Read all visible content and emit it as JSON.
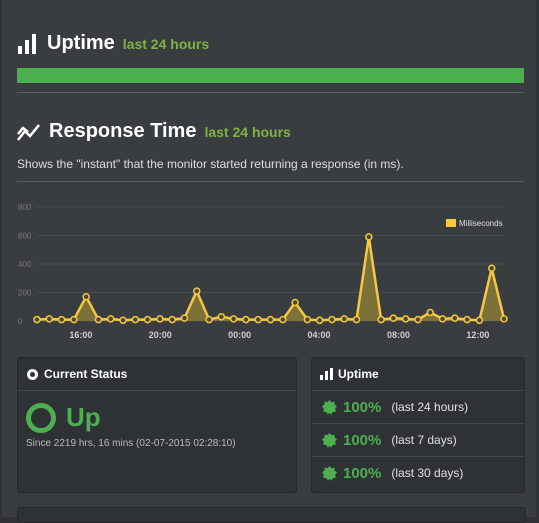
{
  "uptime_section": {
    "title": "Uptime",
    "subtitle": "last 24 hours"
  },
  "response_section": {
    "title": "Response Time",
    "subtitle": "last 24 hours",
    "description": "Shows the \"instant\" that the monitor started returning a response (in ms)."
  },
  "chart_data": {
    "type": "area",
    "series": [
      {
        "name": "Milliseconds",
        "values": [
          10,
          15,
          10,
          10,
          170,
          10,
          15,
          5,
          10,
          10,
          15,
          10,
          20,
          210,
          10,
          30,
          15,
          10,
          10,
          10,
          10,
          130,
          10,
          5,
          10,
          15,
          10,
          590,
          10,
          20,
          15,
          10,
          60,
          15,
          20,
          10,
          5,
          370,
          15
        ]
      }
    ],
    "x_tick_labels": [
      "16:00",
      "20:00",
      "00:00",
      "04:00",
      "08:00",
      "12:00"
    ],
    "y_tick_labels": [
      "0",
      "200",
      "400",
      "600",
      "800"
    ],
    "ylim": [
      0,
      800
    ],
    "legend_position": "top-right",
    "colors": {
      "line": "#f5c842",
      "fill": "#8a7a3a",
      "point_fill": "#4a4a30"
    }
  },
  "current_status": {
    "title": "Current Status",
    "state": "Up",
    "since": "Since 2219 hrs, 16 mins (02-07-2015 02:28:10)",
    "color": "#4caf50"
  },
  "uptime_panel": {
    "title": "Uptime",
    "rows": [
      {
        "percent": "100%",
        "period": "(last 24 hours)"
      },
      {
        "percent": "100%",
        "period": "(last 7 days)"
      },
      {
        "percent": "100%",
        "period": "(last 30 days)"
      }
    ]
  }
}
